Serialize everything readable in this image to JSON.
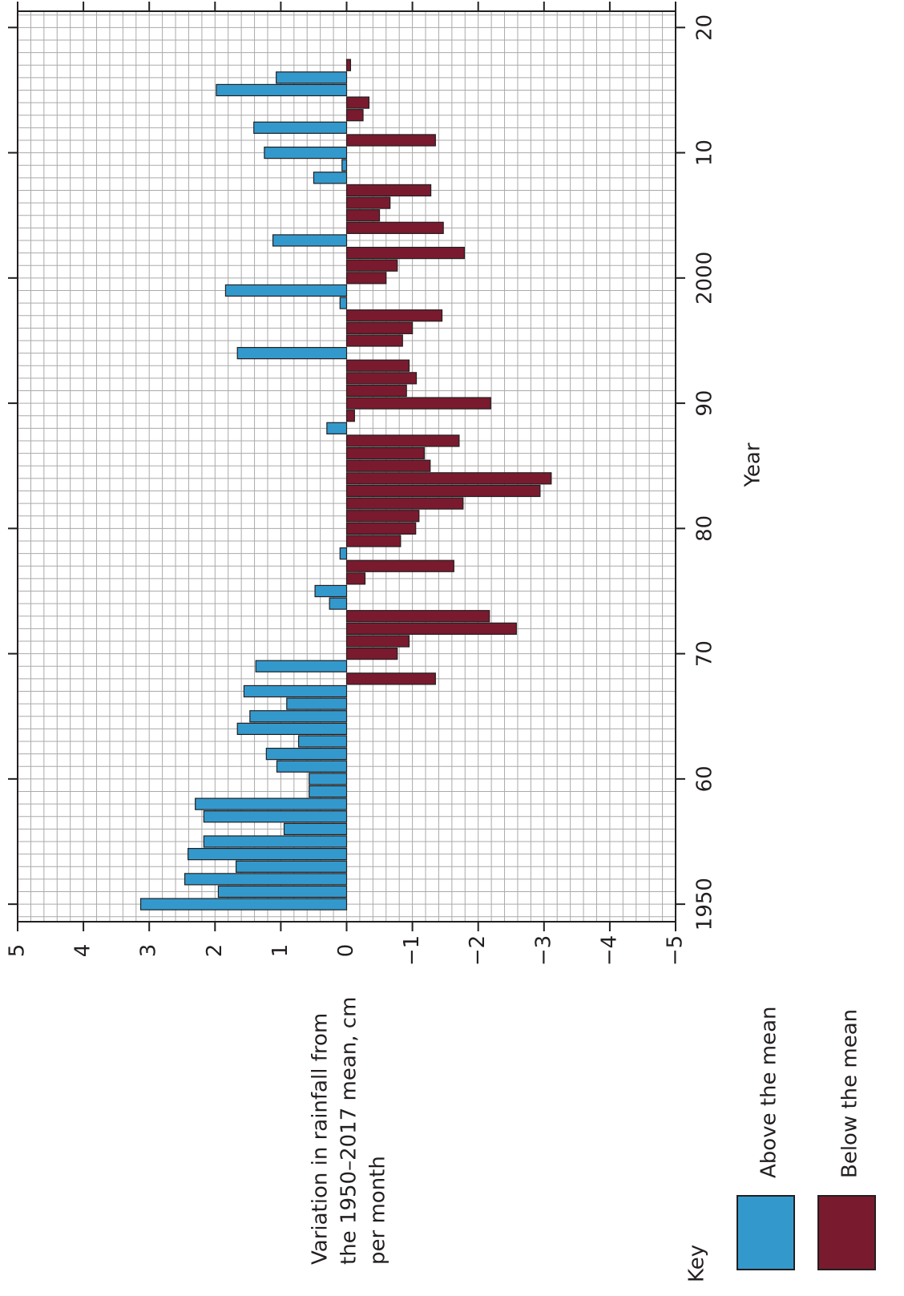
{
  "chart_data": {
    "type": "bar",
    "orientation": "rotated",
    "x_label": "Year",
    "y_label": [
      "Variation in rainfall from",
      "the 1950–2017 mean, cm",
      "per month"
    ],
    "legend_title": "Key",
    "x": [
      1950,
      1951,
      1952,
      1953,
      1954,
      1955,
      1956,
      1957,
      1958,
      1959,
      1960,
      1961,
      1962,
      1963,
      1964,
      1965,
      1966,
      1967,
      1968,
      1969,
      1970,
      1971,
      1972,
      1973,
      1974,
      1975,
      1976,
      1977,
      1978,
      1979,
      1980,
      1981,
      1982,
      1983,
      1984,
      1985,
      1986,
      1987,
      1988,
      1989,
      1990,
      1991,
      1992,
      1993,
      1994,
      1995,
      1996,
      1997,
      1998,
      1999,
      2000,
      2001,
      2002,
      2003,
      2004,
      2005,
      2006,
      2007,
      2008,
      2009,
      2010,
      2011,
      2012,
      2013,
      2014,
      2015,
      2016,
      2017
    ],
    "series": [
      {
        "name": "Above the mean",
        "color": "#3399cc",
        "values": [
          3.13,
          1.95,
          2.46,
          1.68,
          2.41,
          2.17,
          0.95,
          2.17,
          2.3,
          0.57,
          0.57,
          1.06,
          1.22,
          0.73,
          1.66,
          1.47,
          0.91,
          1.56,
          null,
          1.38,
          null,
          null,
          null,
          null,
          0.26,
          0.48,
          null,
          null,
          0.1,
          null,
          null,
          null,
          null,
          null,
          null,
          null,
          null,
          null,
          0.3,
          null,
          null,
          null,
          null,
          null,
          1.66,
          null,
          null,
          null,
          0.1,
          1.84,
          null,
          null,
          null,
          1.12,
          null,
          null,
          null,
          null,
          0.5,
          0.07,
          1.25,
          null,
          1.41,
          null,
          null,
          1.98,
          1.07,
          null
        ]
      },
      {
        "name": "Below the mean",
        "color": "#7a1a2e",
        "values": [
          null,
          null,
          null,
          null,
          null,
          null,
          null,
          null,
          null,
          null,
          null,
          null,
          null,
          null,
          null,
          null,
          null,
          null,
          -1.35,
          null,
          -0.77,
          -0.95,
          -2.58,
          -2.17,
          null,
          null,
          -0.28,
          -1.63,
          null,
          -0.82,
          -1.05,
          -1.1,
          -1.77,
          -2.94,
          -3.11,
          -1.27,
          -1.18,
          -1.71,
          null,
          -0.12,
          -2.19,
          -0.91,
          -1.06,
          -0.95,
          null,
          -0.85,
          -1.0,
          -1.45,
          null,
          null,
          -0.6,
          -0.77,
          -1.79,
          null,
          -1.47,
          -0.5,
          -0.66,
          -1.28,
          null,
          null,
          null,
          -1.35,
          null,
          -0.25,
          -0.34,
          null,
          null,
          -0.06
        ]
      }
    ],
    "xlim": [
      1948.6,
      2021.3
    ],
    "xticks": [
      {
        "value": 1950,
        "label": "1950"
      },
      {
        "value": 1960,
        "label": "60"
      },
      {
        "value": 1970,
        "label": "70"
      },
      {
        "value": 1980,
        "label": "80"
      },
      {
        "value": 1990,
        "label": "90"
      },
      {
        "value": 2000,
        "label": "2000"
      },
      {
        "value": 2010,
        "label": "10"
      },
      {
        "value": 2020,
        "label": "20"
      }
    ],
    "ylim": [
      -5,
      5
    ],
    "yticks": [
      5,
      4,
      3,
      2,
      1,
      0,
      {
        "value": -1,
        "label": "−1"
      },
      {
        "value": -2,
        "label": "−2"
      },
      {
        "value": -3,
        "label": "−3"
      },
      {
        "value": -4,
        "label": "−4"
      },
      {
        "value": -5,
        "label": "−5"
      }
    ],
    "grid": true
  }
}
